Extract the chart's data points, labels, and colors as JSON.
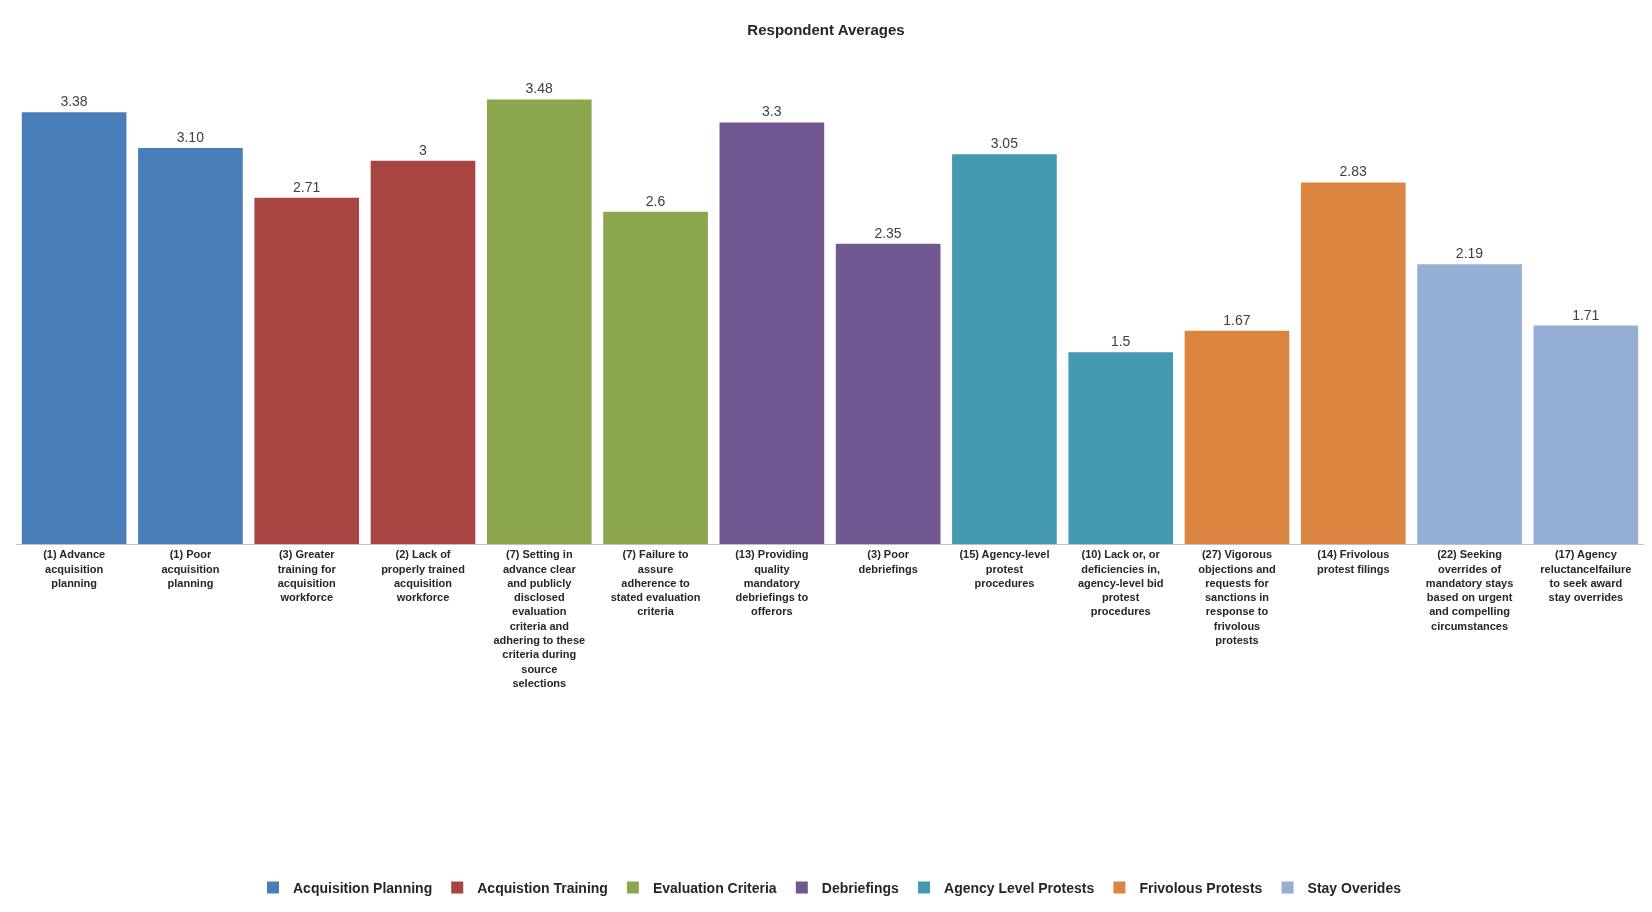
{
  "chart_data": {
    "type": "bar",
    "title": "Respondent Averages",
    "categories": [
      "(1) Advance\nacquisition\nplanning",
      "(1) Poor\nacquisition\nplanning",
      "(3) Greater\ntraining for\nacquisition\nworkforce",
      "(2) Lack of\nproperly trained\nacquisition\nworkforce",
      "(7) Setting in\nadvance clear\nand publicly\ndisclosed\nevaluation\ncriteria and\nadhering to these\ncriteria during\nsource\nselections",
      "(7) Failure to\nassure\nadherence to\nstated evaluation\ncriteria",
      "(13) Providing\nquality\nmandatory\ndebriefings to\nofferors",
      "(3) Poor\ndebriefings",
      "(15) Agency-level\nprotest\nprocedures",
      "(10) Lack or, or\ndeficiencies in,\nagency-level bid\nprotest\nprocedures",
      "(27) Vigorous\nobjections and\nrequests for\nsanctions in\nresponse to\nfrivolous\nprotests",
      "(14) Frivolous\nprotest filings",
      "(22) Seeking\noverrides of\nmandatory stays\nbased on urgent\nand compelling\ncircumstances",
      "(17) Agency\nreluctancelfailure\nto seek award\nstay overrides"
    ],
    "series": [
      {
        "name": "Acquisition Planning",
        "color": "#4a7ebb",
        "values": [
          3.38,
          3.1,
          null,
          null,
          null,
          null,
          null,
          null,
          null,
          null,
          null,
          null,
          null,
          null
        ],
        "value_labels": [
          "3.38",
          "3.10",
          null,
          null,
          null,
          null,
          null,
          null,
          null,
          null,
          null,
          null,
          null,
          null
        ]
      },
      {
        "name": "Acquistion Training",
        "color": "#a84441",
        "values": [
          null,
          null,
          2.71,
          3,
          null,
          null,
          null,
          null,
          null,
          null,
          null,
          null,
          null,
          null
        ],
        "value_labels": [
          null,
          null,
          "2.71",
          "3",
          null,
          null,
          null,
          null,
          null,
          null,
          null,
          null,
          null,
          null
        ]
      },
      {
        "name": "Evaluation Criteria",
        "color": "#8ca64e",
        "values": [
          null,
          null,
          null,
          null,
          3.48,
          2.6,
          null,
          null,
          null,
          null,
          null,
          null,
          null,
          null
        ],
        "value_labels": [
          null,
          null,
          null,
          null,
          "3.48",
          "2.6",
          null,
          null,
          null,
          null,
          null,
          null,
          null,
          null
        ]
      },
      {
        "name": "Debriefings",
        "color": "#725893",
        "values": [
          null,
          null,
          null,
          null,
          null,
          null,
          3.3,
          2.35,
          null,
          null,
          null,
          null,
          null,
          null
        ],
        "value_labels": [
          null,
          null,
          null,
          null,
          null,
          null,
          "3.3",
          "2.35",
          null,
          null,
          null,
          null,
          null,
          null
        ]
      },
      {
        "name": "Agency Level Protests",
        "color": "#4299b0",
        "values": [
          null,
          null,
          null,
          null,
          null,
          null,
          null,
          null,
          3.05,
          1.5,
          null,
          null,
          null,
          null
        ],
        "value_labels": [
          null,
          null,
          null,
          null,
          null,
          null,
          null,
          null,
          "3.05",
          "1.5",
          null,
          null,
          null,
          null
        ]
      },
      {
        "name": "Frivolous Protests",
        "color": "#db8540",
        "values": [
          null,
          null,
          null,
          null,
          null,
          null,
          null,
          null,
          null,
          null,
          1.67,
          2.83,
          null,
          null
        ],
        "value_labels": [
          null,
          null,
          null,
          null,
          null,
          null,
          null,
          null,
          null,
          null,
          "1.67",
          "2.83",
          null,
          null
        ]
      },
      {
        "name": "Stay Overides",
        "color": "#94aed6",
        "values": [
          null,
          null,
          null,
          null,
          null,
          null,
          null,
          null,
          null,
          null,
          null,
          null,
          2.19,
          1.71
        ],
        "value_labels": [
          null,
          null,
          null,
          null,
          null,
          null,
          null,
          null,
          null,
          null,
          null,
          null,
          "2.19",
          "1.71"
        ]
      }
    ],
    "tick_labels": "x",
    "legend": "bottom"
  }
}
